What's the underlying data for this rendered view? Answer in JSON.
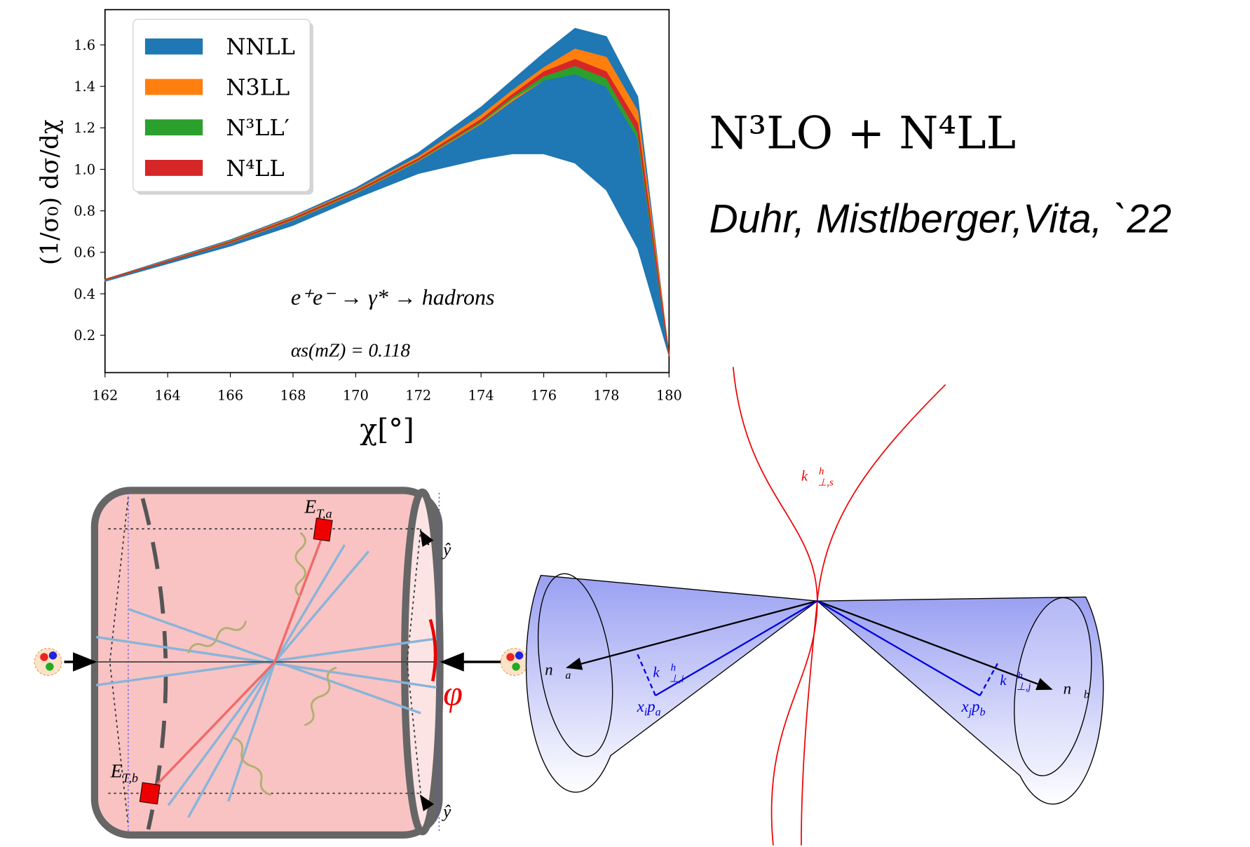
{
  "chart_data": {
    "type": "band",
    "x_label": "χ[°]",
    "y_label": "(1/σ₀) dσ/dχ",
    "annotations": [
      "e⁺e⁻ → γ* → hadrons",
      "αs(mZ) = 0.118"
    ],
    "x": [
      162,
      164,
      166,
      168,
      170,
      172,
      174,
      175,
      176,
      177,
      178,
      179,
      180
    ],
    "series": [
      {
        "name": "NNLL",
        "color": "#1f77b4",
        "upper": [
          0.47,
          0.565,
          0.66,
          0.775,
          0.91,
          1.08,
          1.3,
          1.43,
          1.56,
          1.68,
          1.64,
          1.35,
          0.1
        ],
        "lower": [
          0.46,
          0.545,
          0.63,
          0.73,
          0.86,
          0.98,
          1.05,
          1.075,
          1.075,
          1.03,
          0.9,
          0.62,
          0.1
        ]
      },
      {
        "name": "N3LL",
        "color": "#ff7f0e",
        "upper": [
          0.47,
          0.56,
          0.655,
          0.77,
          0.9,
          1.06,
          1.26,
          1.38,
          1.49,
          1.58,
          1.54,
          1.28,
          0.11
        ],
        "lower": [
          0.465,
          0.555,
          0.645,
          0.755,
          0.885,
          1.04,
          1.22,
          1.33,
          1.43,
          1.47,
          1.4,
          1.15,
          0.1
        ]
      },
      {
        "name": "N³LL′",
        "color": "#2ca02c",
        "upper": [
          0.47,
          0.557,
          0.652,
          0.765,
          0.895,
          1.05,
          1.24,
          1.36,
          1.46,
          1.51,
          1.46,
          1.21,
          0.1
        ],
        "lower": [
          0.467,
          0.554,
          0.647,
          0.758,
          0.888,
          1.043,
          1.225,
          1.34,
          1.43,
          1.46,
          1.4,
          1.15,
          0.1
        ]
      },
      {
        "name": "N⁴LL",
        "color": "#d62728",
        "upper": [
          0.469,
          0.557,
          0.651,
          0.764,
          0.894,
          1.05,
          1.24,
          1.36,
          1.47,
          1.53,
          1.47,
          1.22,
          0.1
        ],
        "lower": [
          0.467,
          0.555,
          0.648,
          0.76,
          0.89,
          1.046,
          1.232,
          1.35,
          1.45,
          1.5,
          1.44,
          1.18,
          0.1
        ]
      }
    ],
    "xlim": [
      162,
      180
    ],
    "xticks": [
      162,
      164,
      166,
      168,
      170,
      172,
      174,
      176,
      178,
      180
    ],
    "ylim": [
      0.02,
      1.77
    ],
    "yticks": [
      0.2,
      0.4,
      0.6,
      0.8,
      {
        "value": 1,
        "label": "1.0"
      },
      1.2,
      1.4,
      1.6
    ],
    "legend": "upper left",
    "grid": false
  },
  "slide": {
    "heading": "N³LO + N⁴LL",
    "citation": "Duhr, Mistlberger,Vita, `22"
  },
  "diagrams": {
    "cylinder": {
      "e_ta": {
        "base": "E",
        "sub": "T,a"
      },
      "e_tb": {
        "base": "E",
        "sub": "T,b"
      },
      "y_top": "ŷ",
      "y_bottom": "ŷ",
      "phi": "φ"
    },
    "cones": {
      "k_s": {
        "base": "k⃗",
        "sup": "h",
        "sub": "⊥,s"
      },
      "k_i": {
        "base": "k⃗",
        "sup": "h",
        "sub": "⊥,i"
      },
      "k_j": {
        "base": "k⃗",
        "sup": "h",
        "sub": "⊥,j"
      },
      "n_a": {
        "base": "n⃗",
        "sub": "a"
      },
      "n_b": {
        "base": "n⃗",
        "sub": "b"
      },
      "xipa": {
        "x": "x",
        "i": "i",
        "p": "p",
        "a": "a"
      },
      "xjpb": {
        "x": "x",
        "j": "j",
        "p": "p",
        "b": "b"
      }
    }
  }
}
